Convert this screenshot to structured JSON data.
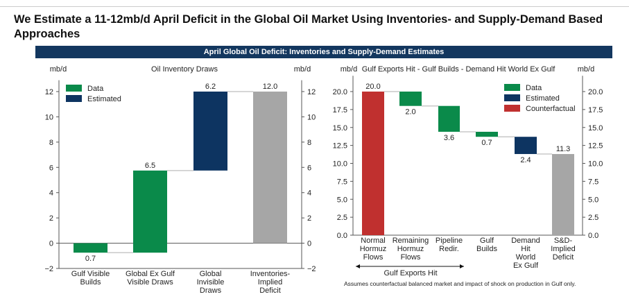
{
  "title": "We Estimate a 11-12mb/d April Deficit in the Global Oil Market Using Inventories- and Supply-Demand Based Approaches",
  "banner": "April Global Oil Deficit: Inventories and Supply-Demand Estimates",
  "colors": {
    "data": "#0a8a4a",
    "estimated": "#0d3461",
    "counterfactual": "#c0302f",
    "total": "#a6a6a6",
    "banner": "#13375f"
  },
  "note": "Assumes counterfactual balanced market and impact of shock on production in Gulf only.",
  "chart_data": [
    {
      "type": "bar",
      "subtype": "waterfall",
      "title": "Oil Inventory Draws",
      "ylabel_left": "mb/d",
      "ylabel_right": "mb/d",
      "ylim": [
        -2,
        12.9
      ],
      "yticks": [
        -2,
        0,
        2,
        4,
        6,
        8,
        10,
        12
      ],
      "legend": [
        {
          "name": "Data",
          "kind": "data"
        },
        {
          "name": "Estimated",
          "kind": "estimated"
        }
      ],
      "legend_position": "top-left",
      "bars": [
        {
          "category": [
            "Gulf Visible",
            "Builds"
          ],
          "start": 0,
          "end": -0.75,
          "label": "0.7",
          "kind": "data",
          "label_pos": "below"
        },
        {
          "category": [
            "Global Ex Gulf",
            "Visible Draws"
          ],
          "start": -0.75,
          "end": 5.75,
          "label": "6.5",
          "kind": "data",
          "label_pos": "above"
        },
        {
          "category": [
            "Global",
            "Invisible",
            "Draws"
          ],
          "start": 5.75,
          "end": 12.0,
          "label": "6.2",
          "kind": "estimated",
          "label_pos": "above"
        },
        {
          "category": [
            "Inventories-",
            "Implied",
            "Deficit"
          ],
          "start": 0,
          "end": 12.0,
          "label": "12.0",
          "kind": "total",
          "label_pos": "above"
        }
      ]
    },
    {
      "type": "bar",
      "subtype": "waterfall",
      "title": "Gulf Exports Hit - Gulf Builds - Demand Hit World Ex Gulf",
      "ylabel_left": "mb/d",
      "ylabel_right": "mb/d",
      "ylim": [
        0,
        22.2
      ],
      "yticks": [
        "0.0",
        "2.5",
        "5.0",
        "7.5",
        "10.0",
        "12.5",
        "15.0",
        "17.5",
        "20.0"
      ],
      "legend": [
        {
          "name": "Data",
          "kind": "data"
        },
        {
          "name": "Estimated",
          "kind": "estimated"
        },
        {
          "name": "Counterfactual",
          "kind": "counterfactual"
        }
      ],
      "legend_position": "top-right",
      "annotation": "Gulf Exports Hit",
      "bars": [
        {
          "category": [
            "Normal",
            "Hormuz",
            "Flows"
          ],
          "start": 0,
          "end": 20.0,
          "label": "20.0",
          "kind": "counterfactual",
          "label_pos": "above"
        },
        {
          "category": [
            "Remaining",
            "Hormuz",
            "Flows"
          ],
          "start": 20.0,
          "end": 18.0,
          "label": "2.0",
          "kind": "data",
          "label_pos": "below"
        },
        {
          "category": [
            "Pipeline",
            "Redir."
          ],
          "start": 18.0,
          "end": 14.4,
          "label": "3.6",
          "kind": "data",
          "label_pos": "below"
        },
        {
          "category": [
            "Gulf",
            "Builds"
          ],
          "start": 14.4,
          "end": 13.7,
          "label": "0.7",
          "kind": "data",
          "label_pos": "below"
        },
        {
          "category": [
            "Demand",
            "Hit",
            "World",
            "Ex Gulf"
          ],
          "start": 13.7,
          "end": 11.3,
          "label": "2.4",
          "kind": "estimated",
          "label_pos": "below"
        },
        {
          "category": [
            "S&D-",
            "Implied",
            "Deficit"
          ],
          "start": 0,
          "end": 11.3,
          "label": "11.3",
          "kind": "total",
          "label_pos": "above"
        }
      ]
    }
  ]
}
